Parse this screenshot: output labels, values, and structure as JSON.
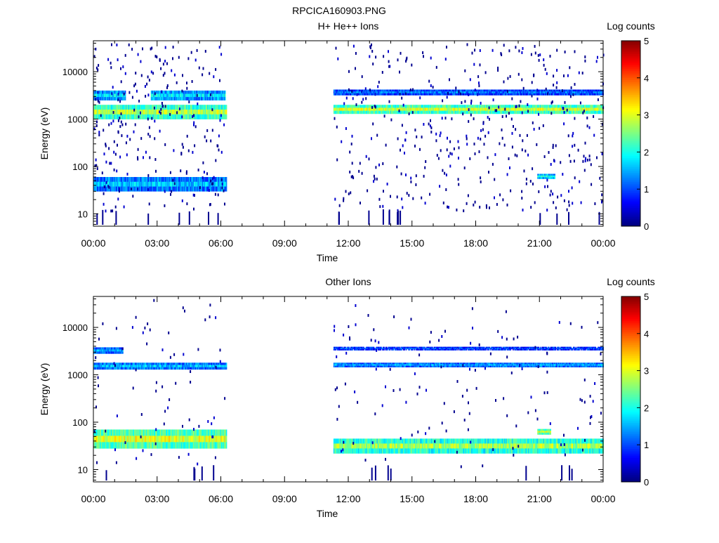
{
  "figure_title": "RPCICA160903.PNG",
  "chart_data": [
    {
      "type": "heatmap",
      "title": "H+ He++ Ions",
      "xlabel": "Time",
      "ylabel": "Energy (eV)",
      "x_tick_labels": [
        "00:00",
        "03:00",
        "06:00",
        "09:00",
        "12:00",
        "15:00",
        "18:00",
        "21:00",
        "00:00"
      ],
      "x_range_hours": [
        0,
        24
      ],
      "y_scale": "log",
      "y_range": [
        5.5,
        45000
      ],
      "y_tick_labels": [
        "10",
        "100",
        "1000",
        "10000"
      ],
      "grid": false,
      "colorbar": {
        "label": "Log counts",
        "range": [
          0,
          5
        ],
        "tick_labels": [
          "0",
          "1",
          "2",
          "3",
          "4",
          "5"
        ]
      },
      "data_gaps_hours": [
        [
          6.25,
          11.3
        ]
      ],
      "bands": [
        {
          "t_start": 0.0,
          "t_end": 6.25,
          "energy_low": 1000,
          "energy_high": 2000,
          "log_counts": 2.8
        },
        {
          "t_start": 0.0,
          "t_end": 1.5,
          "energy_low": 2500,
          "energy_high": 4000,
          "log_counts": 1.8
        },
        {
          "t_start": 2.7,
          "t_end": 6.2,
          "energy_low": 2500,
          "energy_high": 4000,
          "log_counts": 1.8
        },
        {
          "t_start": 0.0,
          "t_end": 6.25,
          "energy_low": 30,
          "energy_high": 60,
          "log_counts": 1.6
        },
        {
          "t_start": 11.3,
          "t_end": 24.0,
          "energy_low": 1300,
          "energy_high": 2000,
          "log_counts": 2.9
        },
        {
          "t_start": 11.3,
          "t_end": 24.0,
          "energy_low": 3200,
          "energy_high": 4200,
          "log_counts": 1.2
        },
        {
          "t_start": 20.9,
          "t_end": 21.7,
          "energy_low": 55,
          "energy_high": 70,
          "log_counts": 2.0
        }
      ]
    },
    {
      "type": "heatmap",
      "title": "Other Ions",
      "xlabel": "Time",
      "ylabel": "Energy (eV)",
      "x_tick_labels": [
        "00:00",
        "03:00",
        "06:00",
        "09:00",
        "12:00",
        "15:00",
        "18:00",
        "21:00",
        "00:00"
      ],
      "x_range_hours": [
        0,
        24
      ],
      "y_scale": "log",
      "y_range": [
        5.5,
        45000
      ],
      "y_tick_labels": [
        "10",
        "100",
        "1000",
        "10000"
      ],
      "grid": false,
      "colorbar": {
        "label": "Log counts",
        "range": [
          0,
          5
        ],
        "tick_labels": [
          "0",
          "1",
          "2",
          "3",
          "4",
          "5"
        ]
      },
      "data_gaps_hours": [
        [
          6.25,
          11.3
        ]
      ],
      "bands": [
        {
          "t_start": 0.0,
          "t_end": 6.25,
          "energy_low": 1300,
          "energy_high": 1800,
          "log_counts": 1.6
        },
        {
          "t_start": 0.0,
          "t_end": 1.4,
          "energy_low": 2800,
          "energy_high": 3800,
          "log_counts": 1.4
        },
        {
          "t_start": 0.0,
          "t_end": 6.25,
          "energy_low": 28,
          "energy_high": 70,
          "log_counts": 3.0
        },
        {
          "t_start": 11.3,
          "t_end": 24.0,
          "energy_low": 1450,
          "energy_high": 1800,
          "log_counts": 1.5
        },
        {
          "t_start": 11.3,
          "t_end": 24.0,
          "energy_low": 3300,
          "energy_high": 3900,
          "log_counts": 1.0
        },
        {
          "t_start": 11.3,
          "t_end": 24.0,
          "energy_low": 22,
          "energy_high": 45,
          "log_counts": 2.7
        },
        {
          "t_start": 20.9,
          "t_end": 21.5,
          "energy_low": 55,
          "energy_high": 72,
          "log_counts": 3.0
        }
      ]
    }
  ]
}
